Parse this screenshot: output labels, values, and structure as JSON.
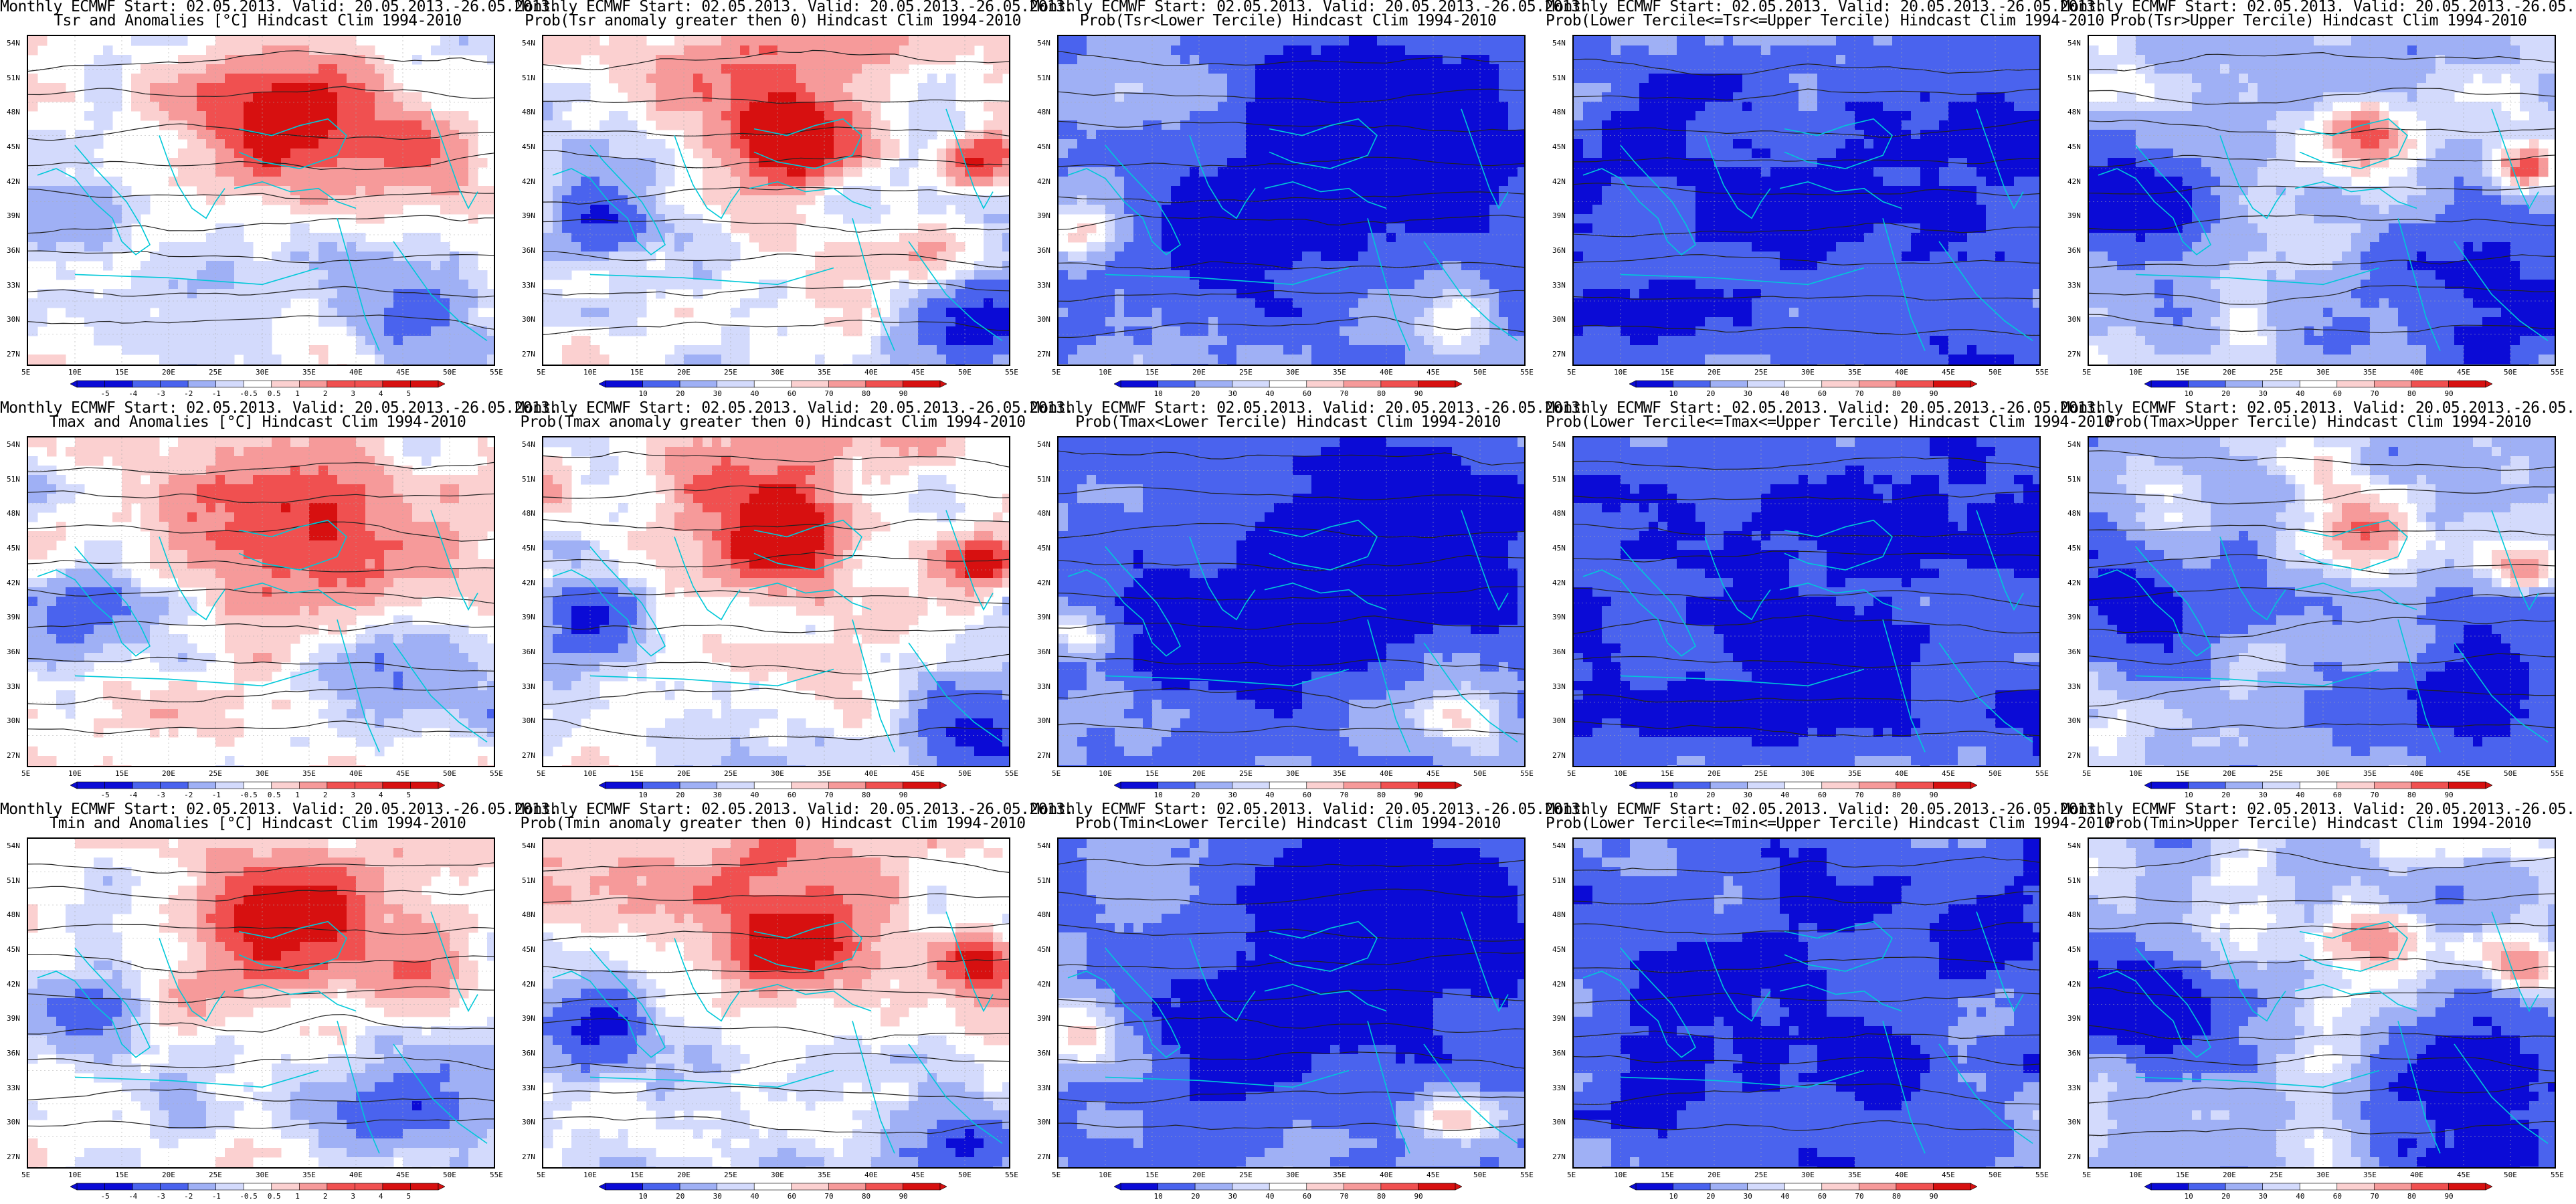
{
  "header": {
    "line1": "Monthly ECMWF Start: 02.05.2013. Valid: 20.05.2013.-26.05.2013."
  },
  "lat_ticks": [
    "54N",
    "51N",
    "48N",
    "45N",
    "42N",
    "39N",
    "36N",
    "33N",
    "30N",
    "27N"
  ],
  "lon_ticks": [
    "5E",
    "10E",
    "15E",
    "20E",
    "25E",
    "30E",
    "35E",
    "40E",
    "45E",
    "50E",
    "55E"
  ],
  "colorbars": {
    "anomaly": {
      "labels": [
        "-5",
        "-4",
        "-3",
        "-2",
        "-1",
        "-0.5",
        "0.5",
        "1",
        "2",
        "3",
        "4",
        "5"
      ]
    },
    "probability": {
      "labels": [
        "10",
        "20",
        "30",
        "40",
        "60",
        "70",
        "80",
        "90"
      ]
    }
  },
  "colors": {
    "blue_dark": "#0b0bd6",
    "blue_mid": "#4a63ee",
    "blue_light": "#9fb0f5",
    "blue_pale": "#d3dafc",
    "red_pale": "#fbd0d0",
    "red_light": "#f69a9a",
    "red_mid": "#f05050",
    "red_dark": "#d71010",
    "coast": "#00c8d8",
    "contour": "#222222"
  },
  "panels": [
    {
      "row": 0,
      "col": 0,
      "title2": "Tsr and Anomalies [°C] Hindcast Clim 1994-2010",
      "bar": "anomaly",
      "style": "anom"
    },
    {
      "row": 0,
      "col": 1,
      "title2": "Prob(Tsr anomaly greater then 0) Hindcast Clim 1994-2010",
      "bar": "probability",
      "style": "prob_gt0"
    },
    {
      "row": 0,
      "col": 2,
      "title2": "Prob(Tsr<Lower Tercile) Hindcast Clim 1994-2010",
      "bar": "probability",
      "style": "prob_low"
    },
    {
      "row": 0,
      "col": 3,
      "title2": "Prob(Lower Tercile<=Tsr<=Upper Tercile) Hindcast Clim 1994-2010",
      "bar": "probability",
      "style": "prob_mid"
    },
    {
      "row": 0,
      "col": 4,
      "title2": "Prob(Tsr>Upper Tercile) Hindcast Clim 1994-2010",
      "bar": "probability",
      "style": "prob_up"
    },
    {
      "row": 1,
      "col": 0,
      "title2": "Tmax and Anomalies [°C] Hindcast Clim 1994-2010",
      "bar": "anomaly",
      "style": "anom"
    },
    {
      "row": 1,
      "col": 1,
      "title2": "Prob(Tmax anomaly greater then 0) Hindcast Clim 1994-2010",
      "bar": "probability",
      "style": "prob_gt0"
    },
    {
      "row": 1,
      "col": 2,
      "title2": "Prob(Tmax<Lower Tercile) Hindcast Clim 1994-2010",
      "bar": "probability",
      "style": "prob_low"
    },
    {
      "row": 1,
      "col": 3,
      "title2": "Prob(Lower Tercile<=Tmax<=Upper Tercile) Hindcast Clim 1994-2010",
      "bar": "probability",
      "style": "prob_mid"
    },
    {
      "row": 1,
      "col": 4,
      "title2": "Prob(Tmax>Upper Tercile) Hindcast Clim 1994-2010",
      "bar": "probability",
      "style": "prob_up"
    },
    {
      "row": 2,
      "col": 0,
      "title2": "Tmin and Anomalies [°C] Hindcast Clim 1994-2010",
      "bar": "anomaly",
      "style": "anom"
    },
    {
      "row": 2,
      "col": 1,
      "title2": "Prob(Tmin anomaly greater then 0) Hindcast Clim 1994-2010",
      "bar": "probability",
      "style": "prob_gt0"
    },
    {
      "row": 2,
      "col": 2,
      "title2": "Prob(Tmin<Lower Tercile) Hindcast Clim 1994-2010",
      "bar": "probability",
      "style": "prob_low"
    },
    {
      "row": 2,
      "col": 3,
      "title2": "Prob(Lower Tercile<=Tmin<=Upper Tercile) Hindcast Clim 1994-2010",
      "bar": "probability",
      "style": "prob_mid"
    },
    {
      "row": 2,
      "col": 4,
      "title2": "Prob(Tmin>Upper Tercile) Hindcast Clim 1994-2010",
      "bar": "probability",
      "style": "prob_up"
    }
  ]
}
